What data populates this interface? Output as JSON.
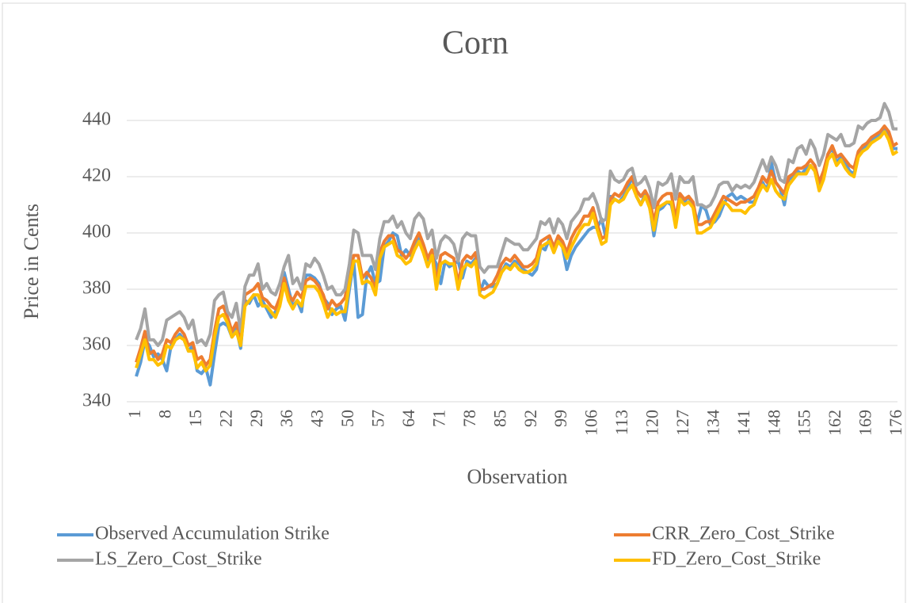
{
  "chart_data": {
    "type": "line",
    "title": "Corn",
    "x_label": "Observation",
    "y_label": "Price in Cents",
    "categories": [
      1,
      null,
      null,
      null,
      null,
      null,
      null,
      8,
      null,
      null,
      null,
      null,
      null,
      null,
      15,
      null,
      null,
      null,
      null,
      null,
      null,
      22,
      null,
      null,
      null,
      null,
      null,
      null,
      29,
      null,
      null,
      null,
      null,
      null,
      null,
      36,
      null,
      null,
      null,
      null,
      null,
      null,
      43,
      null,
      null,
      null,
      null,
      null,
      null,
      50,
      null,
      null,
      null,
      null,
      null,
      null,
      57,
      null,
      null,
      null,
      null,
      null,
      null,
      64,
      null,
      null,
      null,
      null,
      null,
      null,
      71,
      null,
      null,
      null,
      null,
      null,
      null,
      78,
      null,
      null,
      null,
      null,
      null,
      null,
      85,
      null,
      null,
      null,
      null,
      null,
      null,
      92,
      null,
      null,
      null,
      null,
      null,
      null,
      99,
      null,
      null,
      null,
      null,
      null,
      null,
      106,
      null,
      null,
      null,
      null,
      null,
      null,
      113,
      null,
      null,
      null,
      null,
      null,
      null,
      120,
      null,
      null,
      null,
      null,
      null,
      null,
      127,
      null,
      null,
      null,
      null,
      null,
      null,
      134,
      null,
      null,
      null,
      null,
      null,
      null,
      141,
      null,
      null,
      null,
      null,
      null,
      null,
      148,
      null,
      null,
      null,
      null,
      null,
      null,
      155,
      null,
      null,
      null,
      null,
      null,
      null,
      162,
      null,
      null,
      null,
      null,
      null,
      null,
      169,
      null,
      null,
      null,
      null,
      null,
      null,
      176
    ],
    "ylim": [
      340,
      450
    ],
    "yticks": [
      340,
      360,
      380,
      400,
      420,
      440
    ],
    "grid": true,
    "legend": "bottom",
    "series": [
      {
        "name": "Observed Accumulation Strike",
        "color": "#5b9bd5",
        "values": [
          349,
          354,
          362,
          360,
          356,
          357,
          355,
          351,
          360,
          362,
          364,
          362,
          358,
          360,
          351,
          350,
          352,
          346,
          357,
          367,
          368,
          367,
          363,
          366,
          359,
          376,
          375,
          378,
          374,
          376,
          373,
          370,
          372,
          375,
          386,
          380,
          374,
          376,
          372,
          385,
          385,
          384,
          382,
          377,
          375,
          371,
          373,
          374,
          369,
          380,
          390,
          370,
          371,
          385,
          388,
          382,
          383,
          395,
          397,
          400,
          399,
          392,
          394,
          392,
          396,
          398,
          395,
          390,
          392,
          389,
          382,
          390,
          388,
          389,
          390,
          384,
          390,
          389,
          391,
          379,
          383,
          381,
          381,
          382,
          386,
          389,
          388,
          390,
          389,
          387,
          386,
          385,
          387,
          395,
          394,
          398,
          394,
          398,
          395,
          387,
          392,
          395,
          397,
          399,
          401,
          402,
          402,
          405,
          398,
          413,
          412,
          411,
          413,
          416,
          420,
          413,
          410,
          414,
          410,
          399,
          408,
          409,
          411,
          410,
          403,
          414,
          411,
          413,
          409,
          404,
          410,
          408,
          403,
          404,
          406,
          410,
          413,
          414,
          412,
          413,
          412,
          411,
          411,
          414,
          418,
          415,
          425,
          418,
          416,
          410,
          419,
          420,
          422,
          421,
          423,
          424,
          422,
          416,
          421,
          428,
          430,
          425,
          427,
          425,
          422,
          421,
          428,
          430,
          431,
          433,
          434,
          435,
          437,
          435,
          430,
          430
        ]
      },
      {
        "name": "CRR_Zero_Cost_Strike",
        "color": "#ed7d31",
        "values": [
          354,
          359,
          365,
          357,
          358,
          355,
          357,
          362,
          361,
          364,
          366,
          364,
          360,
          361,
          355,
          356,
          353,
          355,
          365,
          373,
          374,
          370,
          365,
          368,
          362,
          378,
          379,
          380,
          382,
          377,
          376,
          374,
          373,
          377,
          384,
          378,
          376,
          379,
          377,
          383,
          384,
          383,
          381,
          378,
          373,
          376,
          374,
          375,
          377,
          385,
          392,
          392,
          384,
          386,
          384,
          380,
          393,
          397,
          399,
          399,
          394,
          393,
          391,
          393,
          397,
          400,
          396,
          391,
          394,
          382,
          392,
          393,
          392,
          391,
          382,
          390,
          392,
          391,
          393,
          380,
          380,
          381,
          382,
          385,
          389,
          391,
          390,
          392,
          390,
          388,
          388,
          389,
          391,
          397,
          398,
          399,
          395,
          399,
          397,
          393,
          398,
          401,
          403,
          406,
          406,
          409,
          403,
          398,
          399,
          412,
          414,
          413,
          415,
          418,
          420,
          415,
          413,
          415,
          412,
          404,
          411,
          413,
          414,
          414,
          405,
          414,
          412,
          413,
          411,
          403,
          403,
          404,
          404,
          407,
          410,
          413,
          412,
          411,
          410,
          411,
          411,
          412,
          413,
          416,
          420,
          418,
          422,
          418,
          416,
          414,
          420,
          421,
          423,
          423,
          424,
          426,
          424,
          418,
          422,
          428,
          431,
          427,
          428,
          426,
          424,
          423,
          429,
          431,
          432,
          434,
          435,
          436,
          438,
          436,
          431,
          432
        ]
      },
      {
        "name": "LS_Zero_Cost_Strike",
        "color": "#a5a5a5",
        "values": [
          362,
          366,
          373,
          362,
          362,
          360,
          362,
          369,
          370,
          371,
          372,
          370,
          366,
          369,
          361,
          362,
          360,
          364,
          376,
          378,
          379,
          372,
          370,
          375,
          365,
          381,
          385,
          385,
          389,
          380,
          382,
          379,
          378,
          382,
          388,
          392,
          382,
          384,
          380,
          389,
          388,
          391,
          389,
          385,
          380,
          381,
          378,
          378,
          380,
          389,
          401,
          400,
          392,
          392,
          392,
          387,
          398,
          404,
          404,
          406,
          402,
          404,
          400,
          398,
          405,
          407,
          405,
          398,
          401,
          391,
          397,
          399,
          398,
          396,
          390,
          398,
          400,
          399,
          399,
          388,
          386,
          388,
          388,
          388,
          393,
          398,
          397,
          396,
          396,
          394,
          394,
          396,
          398,
          404,
          403,
          405,
          400,
          405,
          403,
          398,
          404,
          406,
          408,
          412,
          412,
          414,
          410,
          404,
          405,
          422,
          419,
          418,
          419,
          422,
          423,
          417,
          418,
          420,
          416,
          409,
          418,
          417,
          418,
          421,
          412,
          420,
          418,
          418,
          420,
          410,
          410,
          409,
          410,
          413,
          417,
          418,
          418,
          415,
          417,
          416,
          417,
          416,
          418,
          422,
          426,
          422,
          427,
          424,
          419,
          418,
          426,
          425,
          430,
          431,
          428,
          433,
          430,
          424,
          428,
          435,
          434,
          433,
          435,
          431,
          431,
          432,
          438,
          437,
          439,
          440,
          440,
          441,
          446,
          443,
          437,
          437
        ]
      },
      {
        "name": "FD_Zero_Cost_Strike",
        "color": "#ffc000",
        "values": [
          352,
          357,
          362,
          355,
          355,
          353,
          354,
          360,
          359,
          362,
          363,
          362,
          358,
          358,
          352,
          354,
          351,
          353,
          363,
          370,
          371,
          368,
          363,
          365,
          360,
          374,
          376,
          378,
          378,
          374,
          374,
          372,
          370,
          374,
          382,
          376,
          373,
          376,
          374,
          381,
          381,
          381,
          379,
          375,
          370,
          373,
          371,
          372,
          372,
          382,
          390,
          390,
          382,
          383,
          382,
          378,
          391,
          395,
          396,
          397,
          392,
          391,
          389,
          390,
          394,
          397,
          393,
          388,
          392,
          380,
          389,
          390,
          389,
          389,
          380,
          387,
          389,
          388,
          390,
          378,
          377,
          378,
          379,
          382,
          386,
          388,
          387,
          389,
          387,
          386,
          386,
          387,
          389,
          395,
          396,
          397,
          393,
          397,
          395,
          391,
          395,
          398,
          401,
          403,
          403,
          407,
          401,
          396,
          397,
          410,
          412,
          411,
          412,
          415,
          417,
          413,
          410,
          413,
          409,
          401,
          409,
          410,
          411,
          411,
          402,
          412,
          410,
          411,
          409,
          400,
          400,
          401,
          402,
          405,
          408,
          411,
          410,
          408,
          408,
          408,
          407,
          409,
          410,
          414,
          417,
          415,
          419,
          415,
          413,
          412,
          417,
          419,
          421,
          421,
          421,
          424,
          422,
          415,
          419,
          426,
          428,
          424,
          426,
          423,
          421,
          420,
          427,
          429,
          430,
          432,
          433,
          434,
          436,
          433,
          428,
          429
        ]
      }
    ]
  }
}
